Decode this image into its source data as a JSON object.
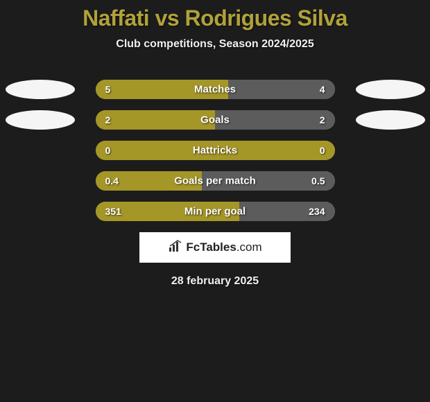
{
  "title": "Naffati vs Rodrigues Silva",
  "subtitle": "Club competitions, Season 2024/2025",
  "date": "28 february 2025",
  "logo": {
    "text_bold": "FcTables",
    "text_light": ".com"
  },
  "colors": {
    "background": "#1c1c1c",
    "accent": "#a59628",
    "title_color": "#b0a23a",
    "bar_right": "#5c5c5c",
    "ellipse": "#f5f5f5",
    "text_light": "#f0f0f0"
  },
  "stats": [
    {
      "label": "Matches",
      "left_val": "5",
      "right_val": "4",
      "left_pct": 55.6,
      "show_ellipses": true
    },
    {
      "label": "Goals",
      "left_val": "2",
      "right_val": "2",
      "left_pct": 50,
      "show_ellipses": true
    },
    {
      "label": "Hattricks",
      "left_val": "0",
      "right_val": "0",
      "left_pct": 100,
      "show_ellipses": false
    },
    {
      "label": "Goals per match",
      "left_val": "0.4",
      "right_val": "0.5",
      "left_pct": 44.4,
      "show_ellipses": false
    },
    {
      "label": "Min per goal",
      "left_val": "351",
      "right_val": "234",
      "left_pct": 60,
      "show_ellipses": false
    }
  ]
}
